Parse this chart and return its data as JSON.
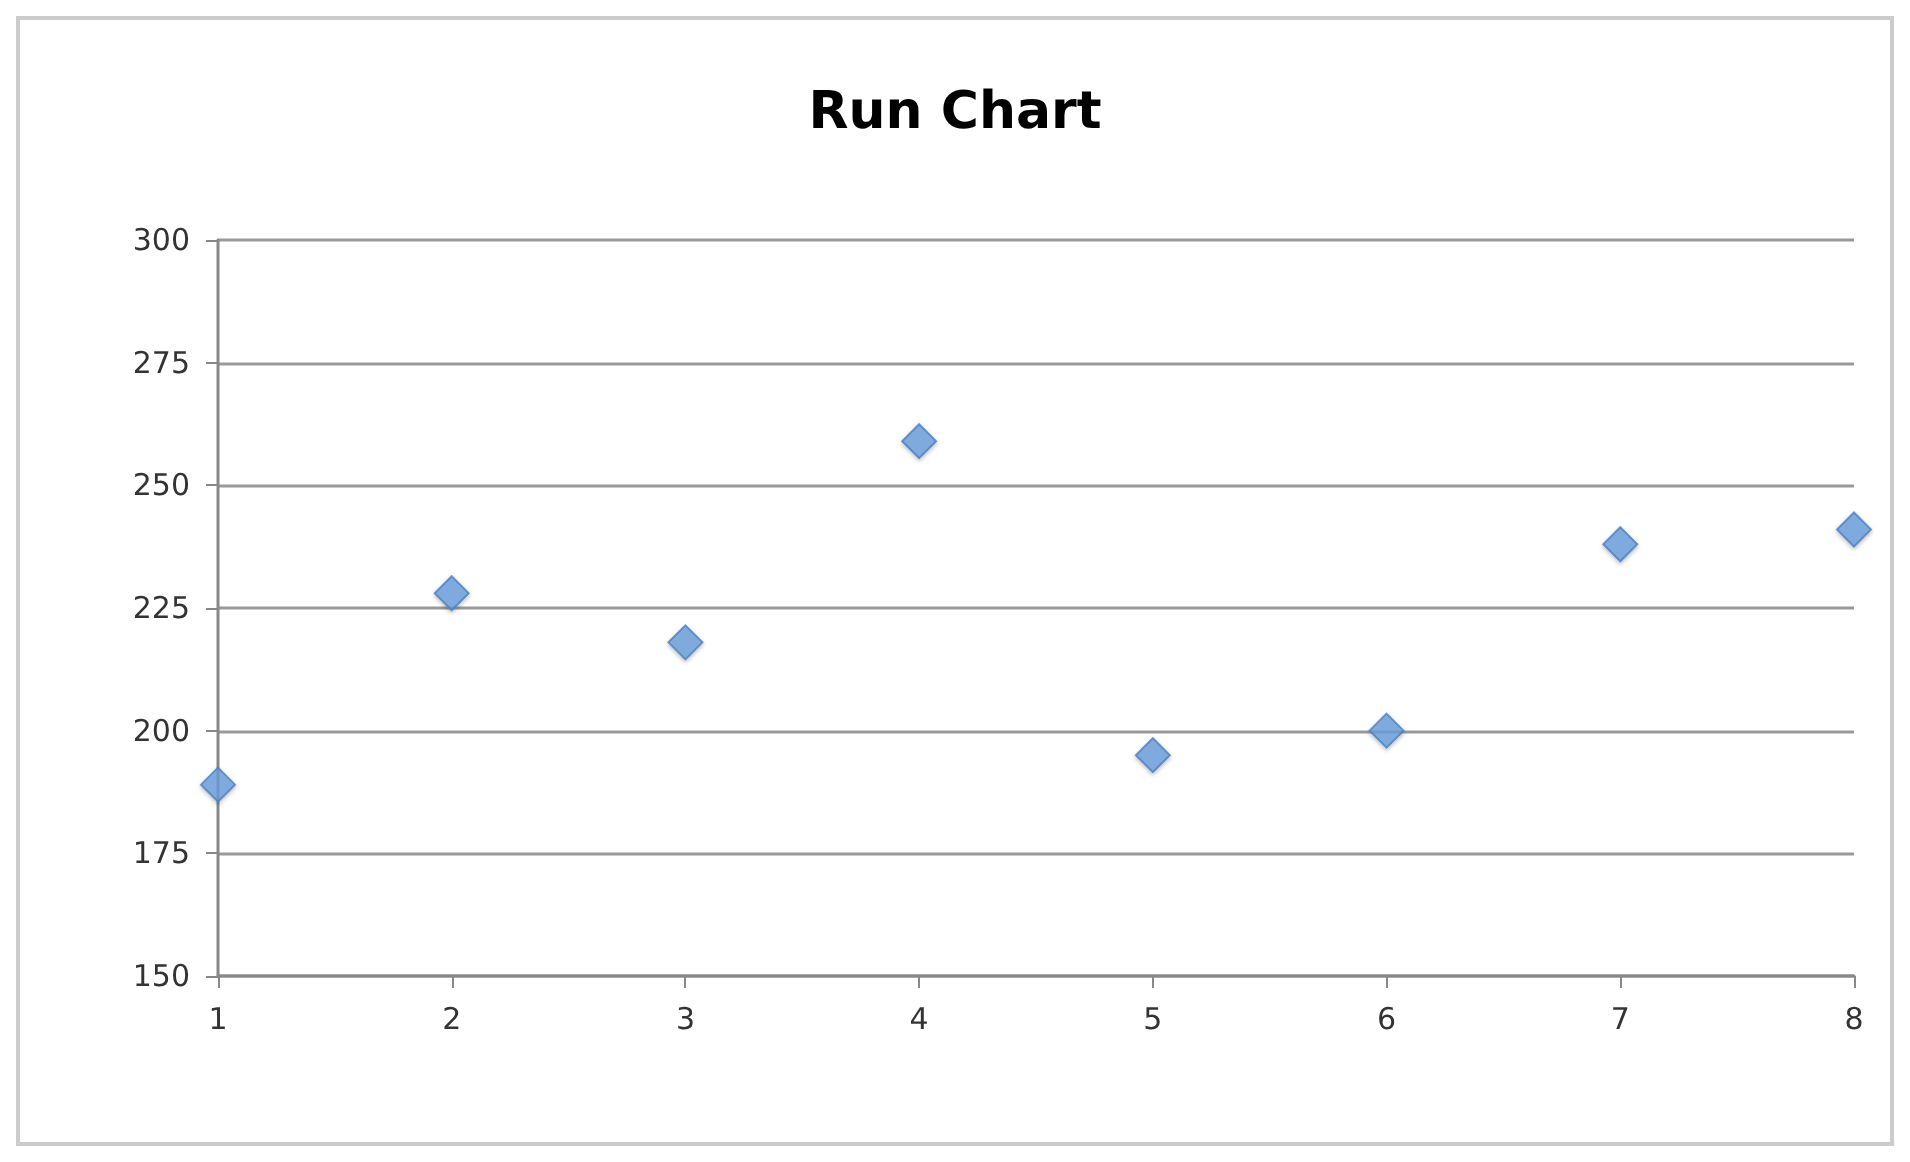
{
  "chart_data": {
    "type": "scatter",
    "title": "Run Chart",
    "x": [
      1,
      2,
      3,
      4,
      5,
      6,
      7,
      8
    ],
    "series": [
      {
        "color": "#6a9fdc",
        "values": [
          189,
          228,
          218,
          259,
          195,
          200,
          238,
          241
        ]
      }
    ],
    "xlim": [
      1,
      8
    ],
    "xticks": [
      1,
      2,
      3,
      4,
      5,
      6,
      7,
      8
    ],
    "ylim": [
      150,
      300
    ],
    "yticks": [
      150,
      175,
      200,
      225,
      250,
      275,
      300
    ],
    "grid": "y",
    "marker": "diamond"
  }
}
